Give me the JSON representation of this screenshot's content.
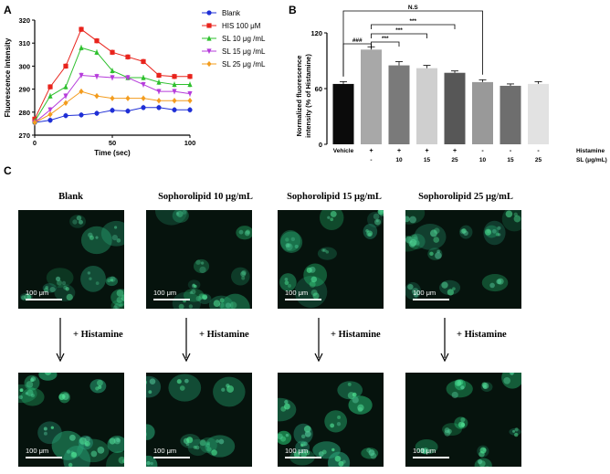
{
  "panels": {
    "a": "A",
    "b": "B",
    "c": "C"
  },
  "chart_data": [
    {
      "type": "line",
      "ylabel": "Fluorescence intensity",
      "xlabel": "Time (sec)",
      "xlim": [
        0,
        100
      ],
      "ylim": [
        270,
        320
      ],
      "xticks": [
        0,
        50,
        100
      ],
      "yticks": [
        270,
        280,
        290,
        300,
        310,
        320
      ],
      "x": [
        0,
        10,
        20,
        30,
        40,
        50,
        60,
        70,
        80,
        90,
        100
      ],
      "series": [
        {
          "name": "Blank",
          "color": "#1f2fd6",
          "marker": "circle",
          "values": [
            275.5,
            276.5,
            278.5,
            278.8,
            279.5,
            280.8,
            280.5,
            282,
            282,
            281,
            281
          ]
        },
        {
          "name": "HIS 100 μM",
          "color": "#e8231c",
          "marker": "square",
          "values": [
            277,
            291,
            300,
            316,
            311,
            306,
            304,
            302,
            296,
            295.5,
            295.5
          ]
        },
        {
          "name": "SL 10 μg /mL",
          "color": "#2ec02e",
          "marker": "triangle-up",
          "values": [
            276,
            287,
            291,
            308,
            306,
            298,
            295,
            295,
            293,
            292,
            292
          ]
        },
        {
          "name": "SL 15 μg /mL",
          "color": "#b63cdb",
          "marker": "triangle-down",
          "values": [
            275.5,
            281,
            287,
            296,
            295.5,
            295,
            295,
            292,
            289,
            289,
            288
          ]
        },
        {
          "name": "SL 25 μg /mL",
          "color": "#f39c1e",
          "marker": "diamond",
          "values": [
            275.5,
            279,
            284,
            289,
            287,
            286,
            286,
            286,
            285,
            285,
            285
          ]
        }
      ]
    },
    {
      "type": "bar",
      "ylabel": "Normalized fluorescence intensity (% of Histamine)",
      "ylim": [
        0,
        120
      ],
      "yticks": [
        0,
        60,
        120
      ],
      "categories": [
        "Vehicle",
        "",
        "",
        "",
        "",
        "",
        "",
        ""
      ],
      "values": [
        65,
        102,
        85,
        82,
        77,
        67,
        63,
        65
      ],
      "errors": [
        2.5,
        3,
        4,
        3,
        2,
        2.5,
        2,
        2.5
      ],
      "colors": [
        "#0b0b0b",
        "#a8a8a8",
        "#7a7a7a",
        "#cfcfcf",
        "#575757",
        "#999999",
        "#6e6e6e",
        "#e2e2e2"
      ],
      "histamine_row": {
        "label": "Histamine",
        "values": [
          "",
          "+",
          "+",
          "+",
          "+",
          "-",
          "-",
          "-"
        ]
      },
      "sl_row": {
        "label": "SL (μg/mL)",
        "values": [
          "",
          "-",
          "10",
          "15",
          "25",
          "10",
          "15",
          "25"
        ]
      },
      "significance": [
        {
          "from": 0,
          "to": 1,
          "label": "###"
        },
        {
          "from": 1,
          "to": 2,
          "label": "***"
        },
        {
          "from": 1,
          "to": 3,
          "label": "***"
        },
        {
          "from": 1,
          "to": 4,
          "label": "***"
        },
        {
          "from": 0,
          "to": 5,
          "label": "N.S"
        }
      ]
    }
  ],
  "microscopy": {
    "titles": [
      "Blank",
      "Sophorolipid 10 μg/mL",
      "Sophorolipid 15 μg/mL",
      "Sophorolipid 25 μg/mL"
    ],
    "scale_label": "100 μm",
    "treatment_label": "+ Histamine"
  }
}
